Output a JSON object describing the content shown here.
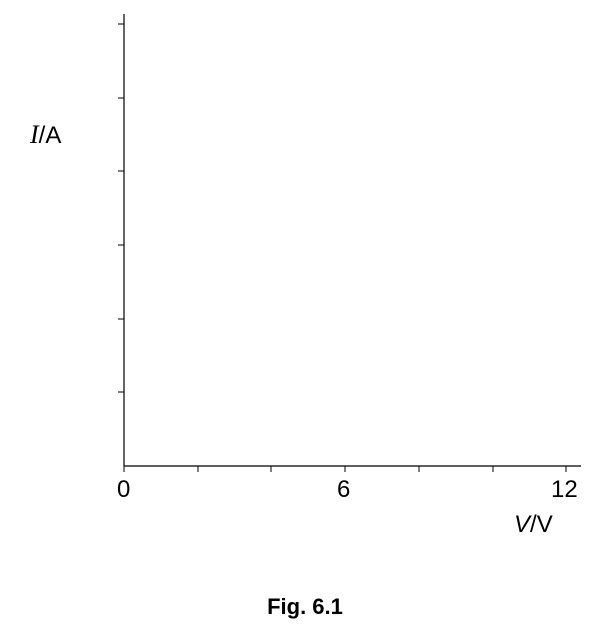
{
  "figure": {
    "caption": "Fig. 6.1"
  },
  "axes": {
    "y_symbol": "I",
    "y_unit": "A",
    "x_symbol": "V",
    "x_unit": "V",
    "separator": "/",
    "x_tick_labels": [
      "0",
      "6",
      "12"
    ]
  }
}
